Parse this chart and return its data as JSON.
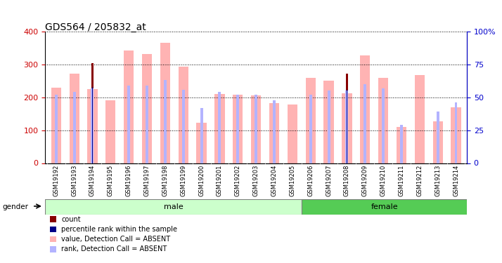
{
  "title": "GDS564 / 205832_at",
  "samples": [
    "GSM19192",
    "GSM19193",
    "GSM19194",
    "GSM19195",
    "GSM19196",
    "GSM19197",
    "GSM19198",
    "GSM19199",
    "GSM19200",
    "GSM19201",
    "GSM19202",
    "GSM19203",
    "GSM19204",
    "GSM19205",
    "GSM19206",
    "GSM19207",
    "GSM19208",
    "GSM19209",
    "GSM19210",
    "GSM19211",
    "GSM19212",
    "GSM19213",
    "GSM19214"
  ],
  "value_absent": [
    230,
    272,
    225,
    192,
    343,
    332,
    365,
    293,
    123,
    210,
    208,
    205,
    182,
    178,
    260,
    250,
    213,
    327,
    260,
    110,
    267,
    128,
    170
  ],
  "rank_absent_pct": [
    52,
    54,
    57,
    null,
    59,
    59,
    63,
    56,
    42,
    54,
    52,
    52,
    48,
    null,
    52,
    55,
    55,
    60,
    57,
    29,
    null,
    39,
    46
  ],
  "count_value": [
    null,
    null,
    303,
    null,
    null,
    null,
    null,
    null,
    null,
    null,
    null,
    null,
    null,
    null,
    null,
    null,
    272,
    null,
    null,
    null,
    null,
    null,
    null
  ],
  "percentile_rank_pct": [
    null,
    null,
    58,
    null,
    null,
    null,
    null,
    null,
    null,
    null,
    null,
    null,
    null,
    null,
    null,
    null,
    56,
    null,
    null,
    null,
    null,
    null,
    null
  ],
  "gender_groups": [
    {
      "label": "male",
      "start": 0,
      "end": 14
    },
    {
      "label": "female",
      "start": 14,
      "end": 23
    }
  ],
  "ylim_left": [
    0,
    400
  ],
  "ylim_right": [
    0,
    100
  ],
  "yticks_left": [
    0,
    100,
    200,
    300,
    400
  ],
  "yticks_right": [
    0,
    25,
    50,
    75,
    100
  ],
  "ytick_labels_right": [
    "0",
    "25",
    "50",
    "75",
    "100%"
  ],
  "colors": {
    "value_absent": "#ffb3b3",
    "rank_absent": "#b3b3ff",
    "count": "#880000",
    "percentile": "#000088",
    "male_bg": "#ccffcc",
    "female_bg": "#55cc55",
    "xtick_bg": "#cccccc",
    "axis_label_left": "#cc0000",
    "axis_label_right": "#0000cc"
  },
  "legend_items": [
    {
      "label": "count",
      "color": "#880000"
    },
    {
      "label": "percentile rank within the sample",
      "color": "#000088"
    },
    {
      "label": "value, Detection Call = ABSENT",
      "color": "#ffb3b3"
    },
    {
      "label": "rank, Detection Call = ABSENT",
      "color": "#b3b3ff"
    }
  ]
}
